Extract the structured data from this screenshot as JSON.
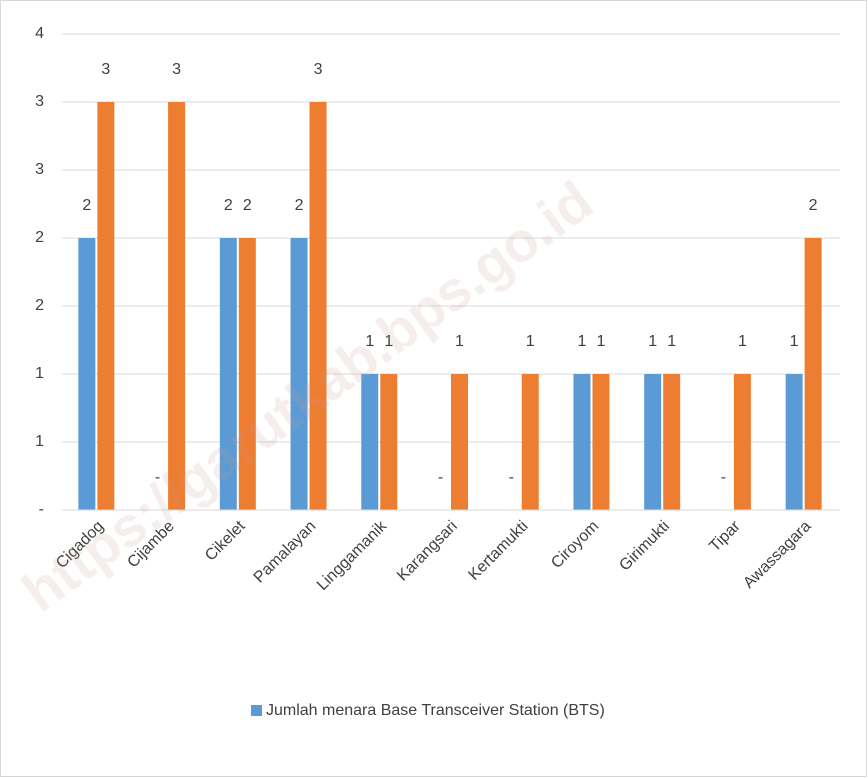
{
  "chart_data": {
    "type": "bar",
    "categories": [
      "Cigadog",
      "Cijambe",
      "Cikelet",
      "Pamalayan",
      "Linggamanik",
      "Karangsari",
      "Kertamukti",
      "Ciroyom",
      "Girimukti",
      "Tipar",
      "Awassagara"
    ],
    "series": [
      {
        "name": "Jumlah menara Base Transceiver Station (BTS)",
        "color": "#5b9bd5",
        "values": [
          2,
          0,
          2,
          2,
          1,
          0,
          0,
          1,
          1,
          0,
          1
        ],
        "value_labels": [
          "2",
          "-",
          "2",
          "2",
          "1",
          "-",
          "-",
          "1",
          "1",
          "-",
          "1"
        ]
      },
      {
        "color": "#ed7d31",
        "values": [
          3,
          3,
          2,
          3,
          1,
          1,
          1,
          1,
          1,
          1,
          2
        ]
      }
    ],
    "ylim": [
      0,
      3.5
    ],
    "yticks": [
      {
        "value": 0,
        "label": "-"
      },
      {
        "value": 0.5,
        "label": "1"
      },
      {
        "value": 1,
        "label": "1"
      },
      {
        "value": 1.5,
        "label": "2"
      },
      {
        "value": 2,
        "label": "2"
      },
      {
        "value": 2.5,
        "label": "3"
      },
      {
        "value": 3,
        "label": "3"
      },
      {
        "value": 3.5,
        "label": "4"
      }
    ],
    "grid": true,
    "legend": "bottom",
    "watermark": "https://garutkab.bps.go.id"
  }
}
